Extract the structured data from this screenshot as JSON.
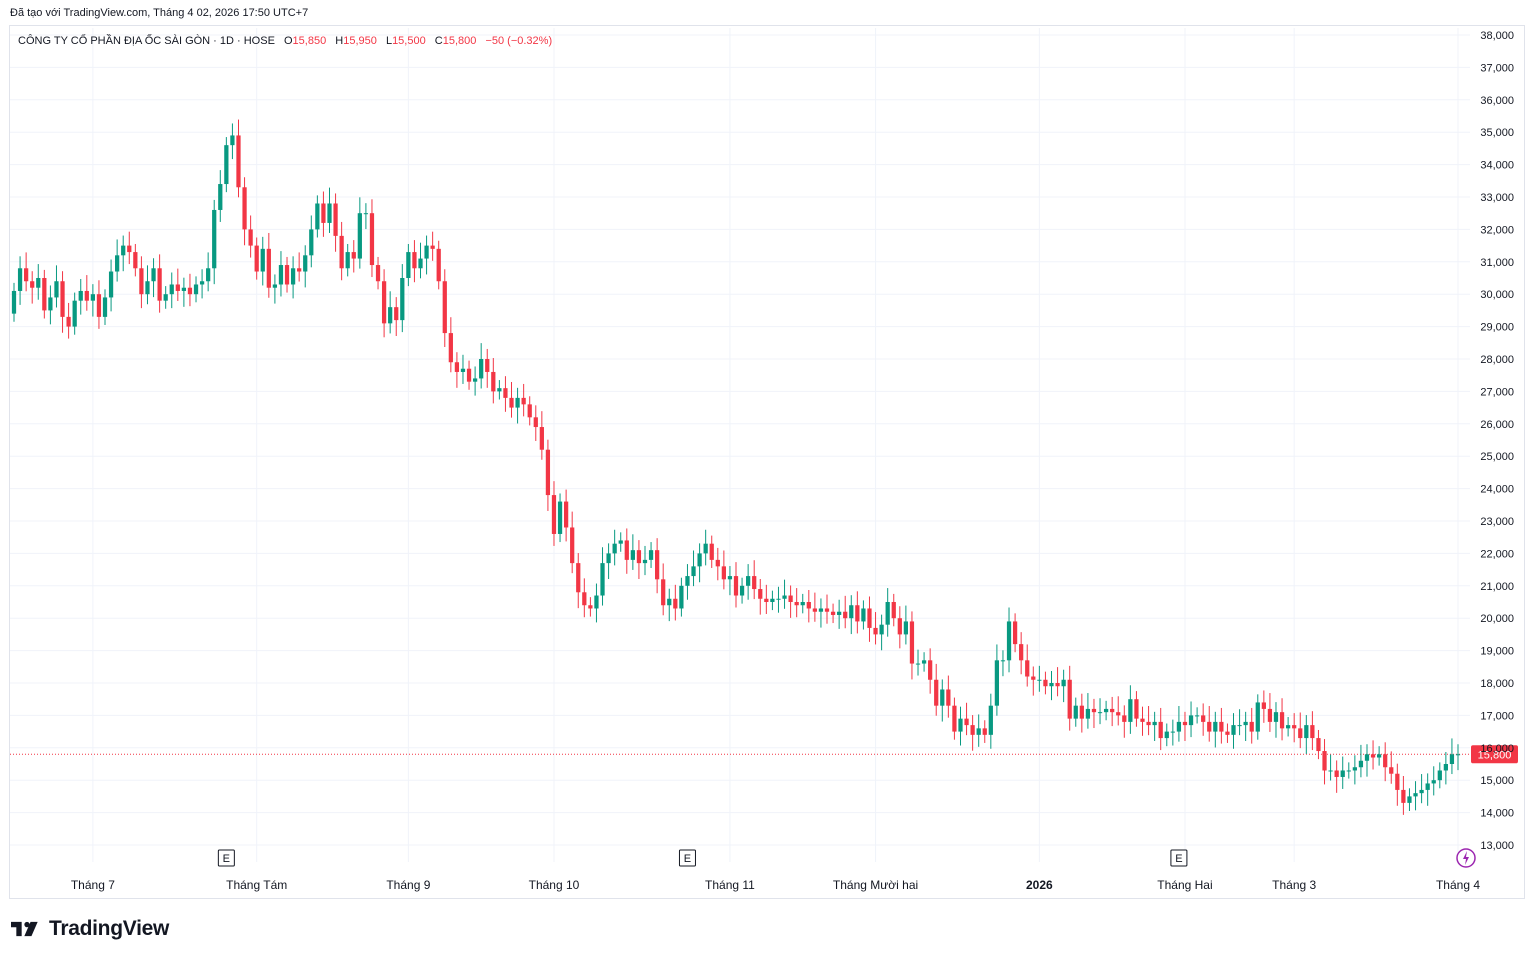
{
  "caption": "Đã tạo với TradingView.com, Tháng 4 02, 2026 17:50 UTC+7",
  "legend": {
    "symbol": "CÔNG TY CỔ PHẦN ĐỊA ỐC SÀI GÒN · 1D · HOSE",
    "open_label": "O",
    "open_value": "15,850",
    "high_label": "H",
    "high_value": "15,950",
    "low_label": "L",
    "low_value": "15,500",
    "close_label": "C",
    "close_value": "15,800",
    "change": "−50 (−0.32%)"
  },
  "brand": {
    "name": "TradingView"
  },
  "colors": {
    "up": "#089981",
    "down": "#f23645",
    "grid": "#f0f3fa",
    "text": "#131722"
  },
  "chart_data": {
    "type": "candlestick",
    "title": "CÔNG TY CỔ PHẦN ĐỊA ỐC SÀI GÒN · 1D · HOSE",
    "y_axis": {
      "side": "right",
      "range": [
        12600,
        38300
      ],
      "ticks": [
        38000,
        37000,
        36000,
        35000,
        34000,
        33000,
        32000,
        31000,
        30000,
        29000,
        28000,
        27000,
        26000,
        25000,
        24000,
        23000,
        22000,
        21000,
        20000,
        19000,
        18000,
        17000,
        16000,
        15000,
        14000,
        13000
      ],
      "tick_labels": [
        "38,000",
        "37,000",
        "36,000",
        "35,000",
        "34,000",
        "33,000",
        "32,000",
        "31,000",
        "30,000",
        "29,000",
        "28,000",
        "27,000",
        "26,000",
        "25,000",
        "24,000",
        "23,000",
        "22,000",
        "21,000",
        "20,000",
        "19,000",
        "18,000",
        "17,000",
        "16,000",
        "15,000",
        "14,000",
        "13,000"
      ]
    },
    "x_axis": {
      "labels": [
        {
          "text": "Tháng 7",
          "index": 13,
          "bold": false
        },
        {
          "text": "Tháng Tám",
          "index": 40,
          "bold": false
        },
        {
          "text": "Tháng 9",
          "index": 65,
          "bold": false
        },
        {
          "text": "Tháng 10",
          "index": 89,
          "bold": false
        },
        {
          "text": "Tháng 11",
          "index": 118,
          "bold": false
        },
        {
          "text": "Tháng Mười hai",
          "index": 142,
          "bold": false
        },
        {
          "text": "2026",
          "index": 169,
          "bold": true
        },
        {
          "text": "Tháng Hai",
          "index": 193,
          "bold": false
        },
        {
          "text": "Tháng 3",
          "index": 211,
          "bold": false
        },
        {
          "text": "Tháng 4",
          "index": 238,
          "bold": false
        }
      ]
    },
    "event_markers": [
      {
        "label": "E",
        "index": 35
      },
      {
        "label": "E",
        "index": 111
      },
      {
        "label": "E",
        "index": 192
      }
    ],
    "last_price": {
      "value": 15800,
      "label": "15,800"
    },
    "series": [
      {
        "name": "",
        "closes": [
          30100,
          30800,
          30400,
          30200,
          30500,
          29500,
          29900,
          30400,
          29300,
          29000,
          29800,
          30100,
          29800,
          30000,
          29300,
          29900,
          30700,
          31200,
          31500,
          31300,
          30800,
          30000,
          30400,
          30800,
          29800,
          30000,
          30300,
          30100,
          30200,
          30000,
          30300,
          30400,
          30800,
          32600,
          33400,
          34600,
          34900,
          33300,
          32000,
          31500,
          30700,
          31400,
          30200,
          30300,
          30900,
          30300,
          30800,
          30700,
          31200,
          32000,
          32800,
          32200,
          32800,
          31800,
          30800,
          31300,
          31100,
          32500,
          32500,
          30900,
          30400,
          29100,
          29600,
          29200,
          30500,
          31300,
          30800,
          31100,
          31500,
          31400,
          30400,
          28800,
          27900,
          27600,
          27700,
          27300,
          27400,
          28000,
          27600,
          27000,
          27100,
          26800,
          26500,
          26800,
          26600,
          26200,
          25900,
          25200,
          23800,
          22600,
          23600,
          22800,
          21700,
          20800,
          20400,
          20300,
          20700,
          21700,
          22000,
          22300,
          22400,
          21800,
          22100,
          21700,
          21800,
          22100,
          21200,
          20400,
          20600,
          20300,
          21000,
          21300,
          21600,
          22000,
          22300,
          21800,
          21600,
          21200,
          21300,
          20700,
          21000,
          21300,
          20900,
          20600,
          20500,
          20600,
          20600,
          20700,
          20500,
          20400,
          20500,
          20300,
          20200,
          20300,
          20200,
          20100,
          20200,
          20000,
          20400,
          19900,
          20300,
          19700,
          19500,
          19800,
          20500,
          20000,
          19500,
          19900,
          18600,
          18600,
          18700,
          18100,
          17300,
          17800,
          17300,
          16500,
          16900,
          16700,
          16400,
          16600,
          16400,
          17300,
          18700,
          18700,
          19900,
          19200,
          18700,
          18200,
          18100,
          18100,
          17900,
          18000,
          17900,
          18100,
          16900,
          17300,
          16900,
          17200,
          17100,
          17100,
          17200,
          17100,
          17000,
          16800,
          17500,
          16900,
          16800,
          16700,
          16800,
          16300,
          16500,
          16500,
          16800,
          16700,
          17000,
          17000,
          16800,
          16500,
          16800,
          16500,
          16400,
          16700,
          16700,
          16800,
          16500,
          17400,
          17200,
          16800,
          17100,
          16600,
          16700,
          16600,
          16300,
          16700,
          16300,
          15900,
          15300,
          15300,
          15100,
          15300,
          15300,
          15400,
          15600,
          15800,
          15700,
          15800,
          15400,
          15200,
          14700,
          14300,
          14500,
          14600,
          14700,
          14900,
          15000,
          15300,
          15500,
          15800,
          15800
        ]
      }
    ]
  }
}
